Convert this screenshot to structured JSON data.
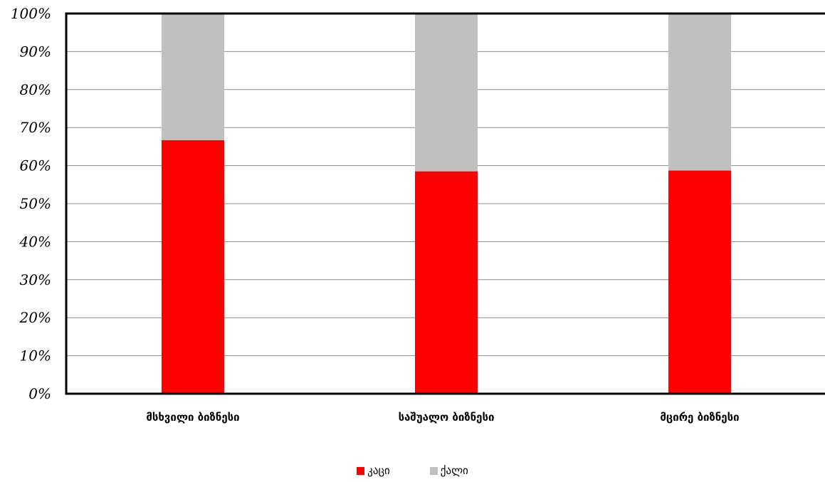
{
  "chart_data": {
    "type": "bar",
    "stacked": true,
    "percent": true,
    "categories": [
      "მსხვილი ბიზნესი",
      "საშუალო ბიზნესი",
      "მცირე ბიზნესი"
    ],
    "series": [
      {
        "name": "კაცი",
        "values": [
          66.7,
          58.5,
          58.7
        ],
        "color": "#ff0000"
      },
      {
        "name": "ქალი",
        "values": [
          33.3,
          41.5,
          41.3
        ],
        "color": "#c0c0c0"
      }
    ],
    "yticks": [
      "0%",
      "10%",
      "20%",
      "30%",
      "40%",
      "50%",
      "60%",
      "70%",
      "80%",
      "90%",
      "100%"
    ],
    "ylim": [
      0,
      100
    ],
    "grid": true,
    "legend_position": "bottom"
  }
}
